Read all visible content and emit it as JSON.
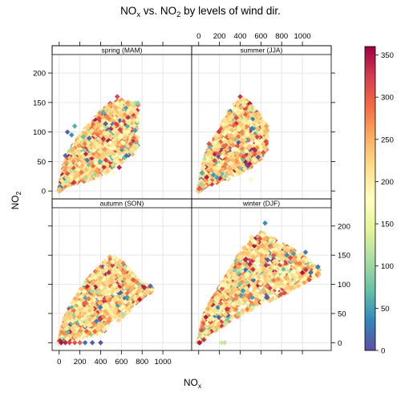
{
  "title": {
    "main_a": "NO",
    "main_a_sub": "x",
    "main_b": " vs. NO",
    "main_b_sub": "2",
    "main_c": " by levels of wind dir."
  },
  "axis": {
    "xlabel": "NO",
    "xlabel_sub": "x",
    "ylabel": "NO",
    "ylabel_sub": "2"
  },
  "chart_data": {
    "type": "scatter",
    "x_ticks": [
      0,
      200,
      400,
      600,
      800,
      1000
    ],
    "y_ticks": [
      0,
      50,
      100,
      150,
      200
    ],
    "x_range": [
      -60,
      1270
    ],
    "y_range": [
      -12,
      230
    ],
    "colorbar": {
      "ticks": [
        0,
        50,
        100,
        150,
        200,
        250,
        300,
        350
      ],
      "range": [
        0,
        360
      ],
      "colors": [
        "#5E4FA2",
        "#3288BD",
        "#66C2A5",
        "#ABDDA4",
        "#E6F598",
        "#FFFFBF",
        "#FEE08B",
        "#FDAE61",
        "#F46D43",
        "#D53E4F",
        "#9E0142"
      ]
    },
    "panels": [
      {
        "name": "spring (MAM)",
        "trend": {
          "ymax_at_x": [
            [
              0,
              0
            ],
            [
              50,
              45
            ],
            [
              100,
              68
            ],
            [
              200,
              95
            ],
            [
              300,
              115
            ],
            [
              400,
              135
            ],
            [
              500,
              150
            ],
            [
              600,
              155
            ],
            [
              700,
              150
            ]
          ],
          "ymin_at_x": [
            [
              0,
              0
            ],
            [
              100,
              10
            ],
            [
              200,
              15
            ],
            [
              300,
              18
            ],
            [
              400,
              25
            ],
            [
              500,
              35
            ],
            [
              600,
              45
            ],
            [
              700,
              60
            ],
            [
              750,
              70
            ]
          ],
          "x_max": 760,
          "count": 2000
        },
        "points": [
          {
            "x": 560,
            "y": 160,
            "c": 320
          },
          {
            "x": 610,
            "y": 150,
            "c": 150
          },
          {
            "x": 720,
            "y": 90,
            "c": 290
          },
          {
            "x": 690,
            "y": 80,
            "c": 300
          },
          {
            "x": 650,
            "y": 60,
            "c": 20
          },
          {
            "x": 580,
            "y": 40,
            "c": 340
          },
          {
            "x": 700,
            "y": 70,
            "c": 210
          },
          {
            "x": 520,
            "y": 30,
            "c": 180
          },
          {
            "x": 80,
            "y": 100,
            "c": 10
          },
          {
            "x": 120,
            "y": 95,
            "c": 40
          },
          {
            "x": 150,
            "y": 110,
            "c": 60
          },
          {
            "x": 60,
            "y": 60,
            "c": 20
          }
        ]
      },
      {
        "name": "summer (JJA)",
        "trend": {
          "ymax_at_x": [
            [
              0,
              0
            ],
            [
              50,
              50
            ],
            [
              100,
              75
            ],
            [
              200,
              105
            ],
            [
              300,
              140
            ],
            [
              400,
              160
            ],
            [
              500,
              150
            ],
            [
              600,
              125
            ],
            [
              650,
              110
            ]
          ],
          "ymin_at_x": [
            [
              0,
              0
            ],
            [
              100,
              10
            ],
            [
              200,
              15
            ],
            [
              300,
              20
            ],
            [
              400,
              30
            ],
            [
              500,
              40
            ],
            [
              600,
              55
            ],
            [
              650,
              70
            ]
          ],
          "x_max": 660,
          "count": 1800
        },
        "points": [
          {
            "x": 400,
            "y": 160,
            "c": 330
          },
          {
            "x": 550,
            "y": 130,
            "c": 240
          },
          {
            "x": 650,
            "y": 110,
            "c": 260
          },
          {
            "x": 620,
            "y": 80,
            "c": 230
          },
          {
            "x": 500,
            "y": 20,
            "c": 170
          },
          {
            "x": 100,
            "y": 80,
            "c": 310
          }
        ]
      },
      {
        "name": "autumn (SON)",
        "trend": {
          "ymax_at_x": [
            [
              0,
              0
            ],
            [
              50,
              40
            ],
            [
              100,
              60
            ],
            [
              200,
              90
            ],
            [
              300,
              115
            ],
            [
              400,
              135
            ],
            [
              500,
              150
            ],
            [
              600,
              140
            ],
            [
              800,
              100
            ],
            [
              900,
              95
            ]
          ],
          "ymin_at_x": [
            [
              0,
              0
            ],
            [
              100,
              5
            ],
            [
              200,
              8
            ],
            [
              300,
              10
            ],
            [
              400,
              15
            ],
            [
              500,
              30
            ],
            [
              600,
              40
            ],
            [
              700,
              60
            ],
            [
              850,
              85
            ]
          ],
          "x_max": 890,
          "count": 2000
        },
        "points": [
          {
            "x": 20,
            "y": 0,
            "c": 350
          },
          {
            "x": 60,
            "y": 0,
            "c": 340
          },
          {
            "x": 100,
            "y": 0,
            "c": 320
          },
          {
            "x": 150,
            "y": 0,
            "c": 310
          },
          {
            "x": 200,
            "y": 0,
            "c": 300
          },
          {
            "x": 250,
            "y": 0,
            "c": 20
          },
          {
            "x": 320,
            "y": 0,
            "c": 10
          },
          {
            "x": 400,
            "y": 0,
            "c": 0
          },
          {
            "x": 880,
            "y": 97,
            "c": 20
          },
          {
            "x": 820,
            "y": 95,
            "c": 340
          }
        ]
      },
      {
        "name": "winter (DJF)",
        "trend": {
          "ymax_at_x": [
            [
              0,
              0
            ],
            [
              50,
              45
            ],
            [
              100,
              65
            ],
            [
              200,
              95
            ],
            [
              300,
              125
            ],
            [
              400,
              155
            ],
            [
              500,
              180
            ],
            [
              600,
              190
            ],
            [
              800,
              170
            ],
            [
              1000,
              150
            ],
            [
              1150,
              125
            ]
          ],
          "ymin_at_x": [
            [
              0,
              0
            ],
            [
              100,
              15
            ],
            [
              200,
              25
            ],
            [
              300,
              35
            ],
            [
              400,
              45
            ],
            [
              500,
              55
            ],
            [
              600,
              65
            ],
            [
              800,
              80
            ],
            [
              1000,
              100
            ],
            [
              1150,
              115
            ]
          ],
          "x_max": 1160,
          "count": 2000
        },
        "points": [
          {
            "x": 640,
            "y": 205,
            "c": 40
          },
          {
            "x": 1030,
            "y": 155,
            "c": 30
          },
          {
            "x": 1150,
            "y": 130,
            "c": 30
          },
          {
            "x": 1080,
            "y": 120,
            "c": 20
          },
          {
            "x": 1000,
            "y": 120,
            "c": 350
          },
          {
            "x": 850,
            "y": 150,
            "c": 40
          },
          {
            "x": 220,
            "y": 0,
            "c": 130
          },
          {
            "x": 250,
            "y": 0,
            "c": 120
          },
          {
            "x": 10,
            "y": 0,
            "c": 350
          },
          {
            "x": 50,
            "y": 5,
            "c": 330
          }
        ]
      }
    ]
  }
}
